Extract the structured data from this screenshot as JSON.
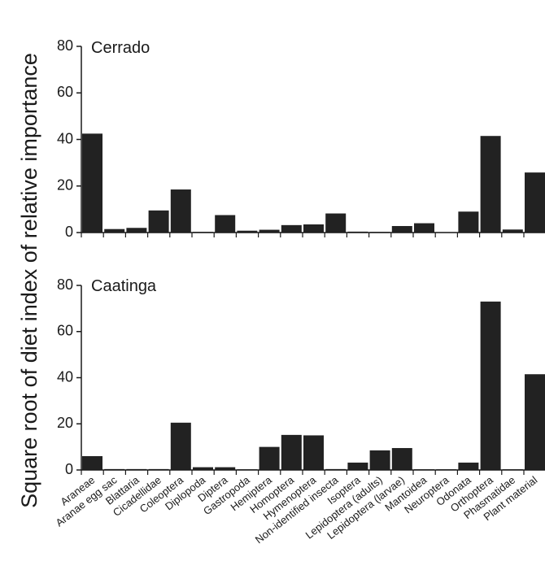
{
  "chart_data": {
    "type": "bar",
    "ylabel": "Square root of diet index of relative importance",
    "xlabel": "",
    "ylim": [
      0,
      80
    ],
    "yticks": [
      0,
      20,
      40,
      60,
      80
    ],
    "bar_color": "#222222",
    "categories": [
      "Araneae",
      "Aranae egg sac",
      "Blattaria",
      "Cicadellidae",
      "Coleoptera",
      "Diplopoda",
      "Diptera",
      "Gastropoda",
      "Hemiptera",
      "Homoptera",
      "Hymenoptera",
      "Non-identified insecta",
      "Isoptera",
      "Lepidoptera (adults)",
      "Lepidoptera (larvae)",
      "Mantoidea",
      "Neuroptera",
      "Odonata",
      "Orthoptera",
      "Phasmatidae",
      "Plant material"
    ],
    "panels": [
      {
        "title": "Cerrado",
        "values": [
          42.5,
          1.5,
          2.0,
          9.5,
          18.5,
          0.3,
          7.5,
          0.8,
          1.2,
          3.2,
          3.5,
          8.2,
          0.4,
          0.3,
          2.8,
          4.0,
          0.2,
          9.0,
          41.5,
          1.3,
          25.8
        ]
      },
      {
        "title": "Caatinga",
        "values": [
          6.0,
          0.4,
          0.4,
          0.4,
          20.5,
          1.2,
          1.2,
          0.3,
          10.0,
          15.2,
          15.0,
          0.4,
          3.2,
          8.5,
          9.5,
          0.3,
          0.3,
          3.2,
          73.0,
          0.3,
          41.5
        ]
      }
    ]
  }
}
